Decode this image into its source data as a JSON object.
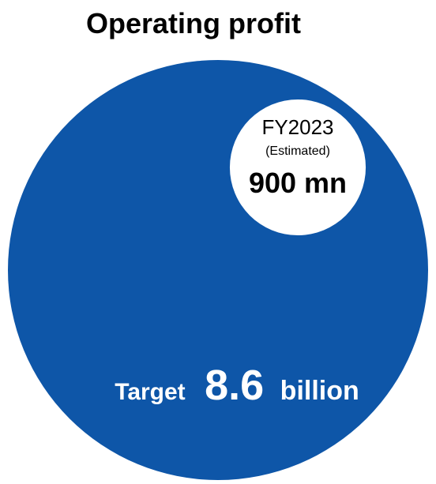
{
  "chart_data": {
    "type": "bubble",
    "title": "Operating profit",
    "colors": {
      "target": "#0e56a8",
      "estimate": "#ffffff",
      "text_light": "#ffffff",
      "text_dark": "#000000"
    },
    "circles": [
      {
        "name": "target",
        "value": 8.6,
        "unit": "billion",
        "label_prefix": "Target",
        "label_value": "8.6",
        "label_unit": "billion"
      },
      {
        "name": "estimate",
        "value": 0.9,
        "unit": "billion",
        "label_year": "FY2023",
        "label_note": "(Estimated)",
        "label_value": "900 mn"
      }
    ]
  }
}
